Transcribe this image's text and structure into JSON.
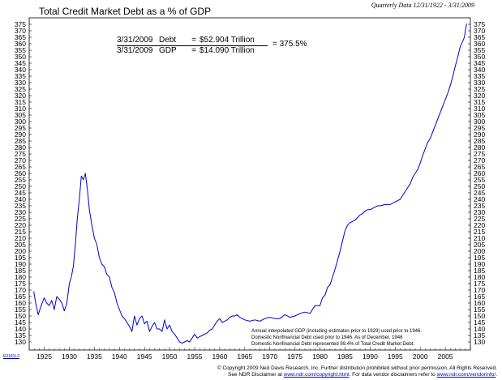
{
  "header": {
    "title": "Total Credit Market Debt as a % of GDP",
    "date_range": "Quarterly Data 12/31/1922 - 3/31/2009"
  },
  "formula": {
    "date": "3/31/2009",
    "numerator_label": "Debt",
    "numerator_value": "$52.904 Trillion",
    "denominator_label": "GDP",
    "denominator_value": "$14.090 Trillion",
    "equals": "=",
    "result": "= 375.5%"
  },
  "notes": [
    "Annual interpolated GDP (including estimates prior to 1929) used prior to 1946.",
    "Domestic Nonfinancial Debt used prior to 1946. As of December, 1946",
    "Domestic Nonfinancial Debt represented 99.4% of Total Credit Market Debt."
  ],
  "footer": {
    "line1": "© Copyright 2009 Ned Davis Research, Inc.  Further distribution prohibited without prior permission.  All Rights Reserved.",
    "line2_prefix": "See NDR Disclaimer at ",
    "link1": "www.ndr.com/copyright.html",
    "line2_middle": ".  For data vendor disclaimers refer to ",
    "link2": "www.ndr.com/vendorinfo/",
    "line2_suffix": "."
  },
  "chart_code": "E0181L3",
  "colors": {
    "line": "#0000cc",
    "axis": "#000000",
    "background": "#ffffff"
  },
  "chart_data": {
    "type": "line",
    "title": "Total Credit Market Debt as a % of GDP",
    "xlabel": "",
    "ylabel": "",
    "xlim": [
      1922,
      2010
    ],
    "ylim": [
      125,
      377
    ],
    "grid": false,
    "y_ticks": [
      130,
      135,
      140,
      145,
      150,
      155,
      160,
      165,
      170,
      175,
      180,
      185,
      190,
      195,
      200,
      205,
      210,
      215,
      220,
      225,
      230,
      235,
      240,
      245,
      250,
      255,
      260,
      265,
      270,
      275,
      280,
      285,
      290,
      295,
      300,
      305,
      310,
      315,
      320,
      325,
      330,
      335,
      340,
      345,
      350,
      355,
      360,
      365,
      370,
      375
    ],
    "x_tick_labels": [
      "1925",
      "1930",
      "1935",
      "1940",
      "1945",
      "1950",
      "1955",
      "1960",
      "1965",
      "1970",
      "1975",
      "1980",
      "1985",
      "1990",
      "1995",
      "2000",
      "2005"
    ],
    "series": [
      {
        "x": [
          1922.9,
          1923.3,
          1923.8,
          1924.3,
          1925.0,
          1925.5,
          1926.0,
          1926.5,
          1927.0,
          1927.5,
          1928.0,
          1928.5,
          1929.0,
          1929.5,
          1930.0,
          1930.4,
          1930.8,
          1931.2,
          1931.6,
          1932.0,
          1932.4,
          1932.8,
          1933.2,
          1933.6,
          1934.0,
          1934.5,
          1935.0,
          1935.5,
          1936.0,
          1936.5,
          1937.0,
          1937.5,
          1938.0,
          1938.5,
          1939.0,
          1939.5,
          1940.0,
          1940.5,
          1941.0,
          1941.5,
          1942.0,
          1942.5,
          1943.0,
          1943.5,
          1944.0,
          1944.5,
          1945.0,
          1945.5,
          1946.0,
          1946.5,
          1947.0,
          1947.5,
          1948.0,
          1948.5,
          1949.0,
          1949.5,
          1950.0,
          1950.5,
          1951.0,
          1951.5,
          1952.0,
          1952.5,
          1953.0,
          1953.5,
          1954.0,
          1954.5,
          1955.0,
          1955.5,
          1956.0,
          1956.5,
          1957.0,
          1957.5,
          1958.0,
          1958.5,
          1959.0,
          1959.5,
          1960.0,
          1960.5,
          1961.0,
          1961.5,
          1962.0,
          1962.5,
          1963.0,
          1963.5,
          1964.0,
          1965.0,
          1966.0,
          1967.0,
          1968.0,
          1969.0,
          1970.0,
          1971.0,
          1972.0,
          1973.0,
          1974.0,
          1975.0,
          1976.0,
          1977.0,
          1978.0,
          1979.0,
          1980.0,
          1980.5,
          1981.0,
          1981.5,
          1982.0,
          1982.5,
          1983.0,
          1983.5,
          1984.0,
          1984.5,
          1985.0,
          1985.5,
          1986.0,
          1986.5,
          1987.0,
          1987.5,
          1988.0,
          1988.5,
          1989.0,
          1989.5,
          1990.0,
          1990.5,
          1991.0,
          1991.5,
          1992.0,
          1993.0,
          1994.0,
          1995.0,
          1996.0,
          1997.0,
          1998.0,
          1998.5,
          1999.0,
          1999.5,
          2000.0,
          2000.5,
          2001.0,
          2001.5,
          2002.0,
          2002.5,
          2003.0,
          2003.5,
          2004.0,
          2004.5,
          2005.0,
          2005.5,
          2006.0,
          2006.5,
          2007.0,
          2007.5,
          2008.0,
          2008.5,
          2008.8,
          2009.0,
          2009.25
        ],
        "y": [
          169,
          160,
          151,
          157,
          164,
          160,
          158,
          162,
          155,
          165,
          163,
          160,
          154,
          160,
          175,
          180,
          188,
          205,
          225,
          240,
          258,
          255,
          260,
          248,
          232,
          220,
          210,
          205,
          195,
          190,
          188,
          182,
          180,
          172,
          168,
          160,
          155,
          150,
          148,
          145,
          142,
          138,
          150,
          143,
          148,
          150,
          144,
          146,
          138,
          142,
          145,
          140,
          140,
          138,
          147,
          140,
          143,
          138,
          136,
          133,
          130,
          129,
          130,
          131,
          130,
          133,
          136,
          133,
          134,
          135,
          136,
          137,
          139,
          140,
          143,
          146,
          148,
          145,
          146,
          147,
          149,
          150,
          150,
          151,
          149,
          147,
          146,
          147,
          146,
          148,
          149,
          148,
          148,
          151,
          149,
          150,
          152,
          153,
          152,
          158,
          158,
          164,
          166,
          172,
          174,
          180,
          186,
          193,
          200,
          208,
          216,
          220,
          222,
          223,
          224,
          226,
          228,
          229,
          231,
          232,
          232,
          233,
          234,
          235,
          235,
          236,
          236,
          238,
          240,
          246,
          252,
          257,
          260,
          263,
          268,
          274,
          279,
          284,
          287,
          292,
          297,
          302,
          307,
          312,
          317,
          322,
          328,
          335,
          343,
          350,
          358,
          362,
          365,
          370,
          375.5
        ]
      }
    ]
  }
}
